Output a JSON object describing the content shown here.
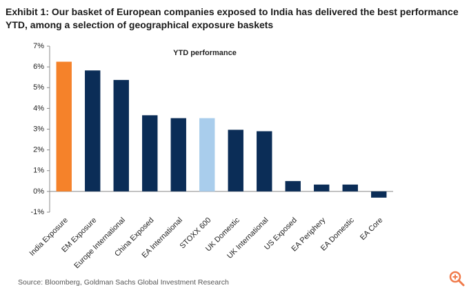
{
  "chart_data": {
    "type": "bar",
    "title": "Exhibit 1: Our basket of European companies exposed to India has delivered the best performance YTD, among a selection of geographical exposure baskets",
    "subtitle": "YTD performance",
    "categories": [
      "India Exposure",
      "EM Exposure",
      "Europe International",
      "China Exposed",
      "EA International",
      "STOXX 600",
      "UK Domestic",
      "UK International",
      "US Exposed",
      "EA Periphery",
      "EA Domestic",
      "EA Core"
    ],
    "values": [
      6.25,
      5.83,
      5.37,
      3.67,
      3.53,
      3.53,
      2.97,
      2.9,
      0.5,
      0.33,
      0.33,
      -0.3
    ],
    "colors": [
      "#f5822a",
      "#0b2d57",
      "#0b2d57",
      "#0b2d57",
      "#0b2d57",
      "#a9cdec",
      "#0b2d57",
      "#0b2d57",
      "#0b2d57",
      "#0b2d57",
      "#0b2d57",
      "#0b2d57"
    ],
    "ylim": [
      -1,
      7
    ],
    "yticks": [
      {
        "value": -1,
        "label": "-1%"
      },
      {
        "value": 0,
        "label": "0%"
      },
      {
        "value": 1,
        "label": "1%"
      },
      {
        "value": 2,
        "label": "2%"
      },
      {
        "value": 3,
        "label": "3%"
      },
      {
        "value": 4,
        "label": "4%"
      },
      {
        "value": 5,
        "label": "5%"
      },
      {
        "value": 6,
        "label": "6%"
      },
      {
        "value": 7,
        "label": "7%"
      }
    ],
    "source": "Source: Bloomberg, Goldman Sachs Global Investment Research"
  }
}
